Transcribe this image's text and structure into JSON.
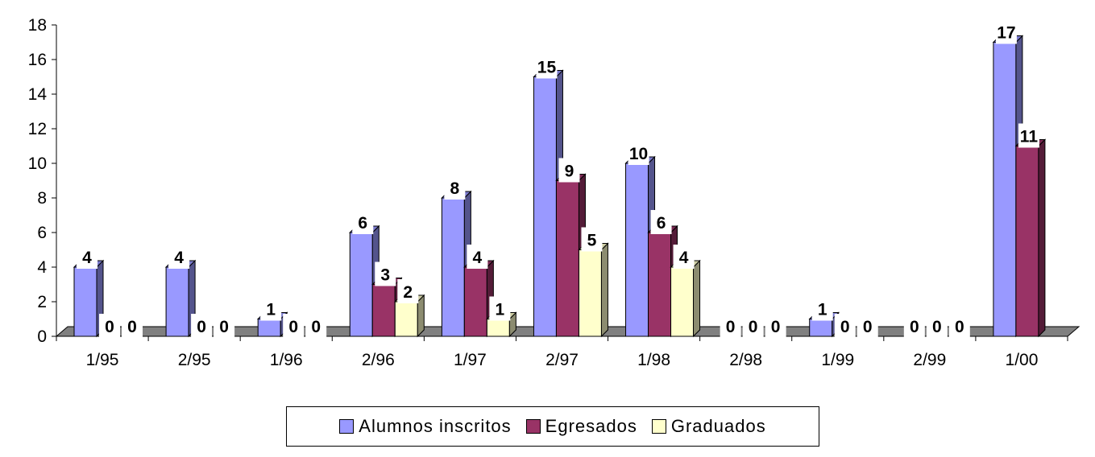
{
  "chart_data": {
    "type": "bar",
    "categories": [
      "1/95",
      "2/95",
      "1/96",
      "2/96",
      "1/97",
      "2/97",
      "1/98",
      "2/98",
      "1/99",
      "2/99",
      "1/00"
    ],
    "series": [
      {
        "name": "Alumnos inscritos",
        "color": "#9999ff",
        "values": [
          4,
          4,
          1,
          6,
          8,
          15,
          10,
          0,
          1,
          0,
          17
        ]
      },
      {
        "name": "Egresados",
        "color": "#993366",
        "values": [
          0,
          0,
          0,
          3,
          4,
          9,
          6,
          0,
          0,
          0,
          11
        ]
      },
      {
        "name": "Graduados",
        "color": "#ffffcc",
        "values": [
          0,
          0,
          0,
          2,
          1,
          5,
          4,
          0,
          0,
          0,
          null
        ]
      }
    ],
    "yticks": [
      "0",
      "2",
      "4",
      "6",
      "8",
      "10",
      "12",
      "14",
      "16",
      "18"
    ],
    "ylim": [
      0,
      18
    ],
    "title": "",
    "xlabel": "",
    "ylabel": "",
    "legend_position": "bottom"
  }
}
